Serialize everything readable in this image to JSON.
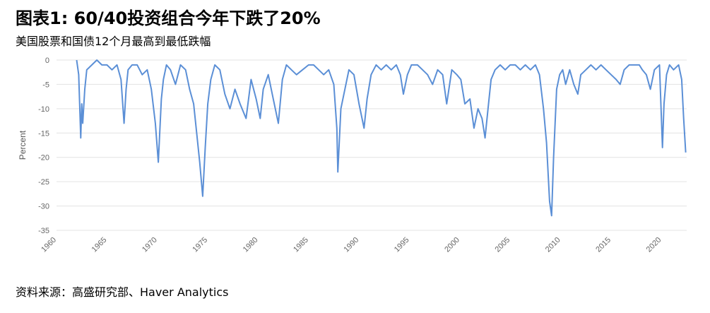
{
  "title": "图表1: 60/40投资组合今年下跌了20%",
  "subtitle": "美国股票和国债12个月最高到最低跌幅",
  "source": "资料来源：高盛研究部、Haver Analytics",
  "chart_data": {
    "type": "line",
    "title": "图表1: 60/40投资组合今年下跌了20%",
    "subtitle": "美国股票和国债12个月最高到最低跌幅",
    "xlabel": "",
    "ylabel": "Percent",
    "xlim": [
      1960,
      2022.5
    ],
    "ylim": [
      -35,
      0
    ],
    "x_ticks": [
      "1960",
      "1965",
      "1970",
      "1975",
      "1980",
      "1985",
      "1990",
      "1995",
      "2000",
      "2005",
      "2010",
      "2015",
      "2020"
    ],
    "y_ticks": [
      "0",
      "-5",
      "-10",
      "-15",
      "-20",
      "-25",
      "-30",
      "-35"
    ],
    "grid": "horizontal",
    "line_color": "#5b8fd6",
    "series": [
      {
        "x": [
          1962.0,
          1962.2,
          1962.4,
          1962.5,
          1962.6,
          1962.8,
          1963.0,
          1963.5,
          1964.0,
          1964.5,
          1965.0,
          1965.5,
          1966.0,
          1966.4,
          1966.7,
          1966.9,
          1967.1,
          1967.5,
          1968.0,
          1968.5,
          1969.0,
          1969.4,
          1969.8,
          1970.1,
          1970.4,
          1970.6,
          1970.9,
          1971.3,
          1971.8,
          1972.3,
          1972.8,
          1973.2,
          1973.6,
          1973.9,
          1974.2,
          1974.5,
          1974.75,
          1975.0,
          1975.3,
          1975.7,
          1976.2,
          1976.7,
          1977.2,
          1977.7,
          1978.2,
          1978.8,
          1979.3,
          1979.8,
          1980.2,
          1980.5,
          1981.0,
          1981.5,
          1982.0,
          1982.4,
          1982.8,
          1983.3,
          1983.8,
          1984.4,
          1985.0,
          1985.5,
          1986.0,
          1986.5,
          1987.0,
          1987.5,
          1987.8,
          1987.9,
          1988.2,
          1988.6,
          1989.0,
          1989.5,
          1990.0,
          1990.5,
          1990.8,
          1991.2,
          1991.7,
          1992.2,
          1992.7,
          1993.2,
          1993.7,
          1994.1,
          1994.4,
          1994.8,
          1995.2,
          1995.8,
          1996.3,
          1996.8,
          1997.3,
          1997.8,
          1998.3,
          1998.7,
          1999.2,
          1999.7,
          2000.1,
          2000.5,
          2001.0,
          2001.4,
          2001.8,
          2002.2,
          2002.5,
          2002.8,
          2003.1,
          2003.5,
          2004.0,
          2004.5,
          2005.0,
          2005.5,
          2006.0,
          2006.5,
          2007.0,
          2007.5,
          2007.9,
          2008.3,
          2008.6,
          2008.9,
          2009.1,
          2009.3,
          2009.6,
          2009.9,
          2010.2,
          2010.5,
          2010.9,
          2011.3,
          2011.7,
          2012.0,
          2012.5,
          2013.0,
          2013.5,
          2014.0,
          2014.5,
          2015.0,
          2015.5,
          2015.9,
          2016.3,
          2016.8,
          2017.3,
          2017.8,
          2018.1,
          2018.5,
          2018.9,
          2019.3,
          2019.8,
          2020.1,
          2020.25,
          2020.5,
          2020.8,
          2021.2,
          2021.7,
          2022.0,
          2022.2,
          2022.4
        ],
        "y": [
          0,
          -3,
          -16,
          -9,
          -13,
          -6,
          -2,
          -1,
          0,
          -1,
          -1,
          -2,
          -1,
          -4,
          -13,
          -6,
          -2,
          -1,
          -1,
          -3,
          -2,
          -6,
          -13,
          -21,
          -8,
          -4,
          -1,
          -2,
          -5,
          -1,
          -2,
          -6,
          -9,
          -15,
          -21,
          -28,
          -18,
          -9,
          -4,
          -1,
          -2,
          -7,
          -10,
          -6,
          -9,
          -12,
          -4,
          -8,
          -12,
          -6,
          -3,
          -8,
          -13,
          -4,
          -1,
          -2,
          -3,
          -2,
          -1,
          -1,
          -2,
          -3,
          -2,
          -5,
          -14,
          -23,
          -10,
          -6,
          -2,
          -3,
          -9,
          -14,
          -8,
          -3,
          -1,
          -2,
          -1,
          -2,
          -1,
          -3,
          -7,
          -3,
          -1,
          -1,
          -2,
          -3,
          -5,
          -2,
          -3,
          -9,
          -2,
          -3,
          -4,
          -9,
          -8,
          -14,
          -10,
          -12,
          -16,
          -10,
          -4,
          -2,
          -1,
          -2,
          -1,
          -1,
          -2,
          -1,
          -2,
          -1,
          -3,
          -10,
          -17,
          -29,
          -32,
          -20,
          -6,
          -3,
          -2,
          -5,
          -2,
          -5,
          -7,
          -3,
          -2,
          -1,
          -2,
          -1,
          -2,
          -3,
          -4,
          -5,
          -2,
          -1,
          -1,
          -1,
          -2,
          -3,
          -6,
          -2,
          -1,
          -18,
          -9,
          -3,
          -1,
          -2,
          -1,
          -4,
          -12,
          -19
        ]
      }
    ]
  }
}
